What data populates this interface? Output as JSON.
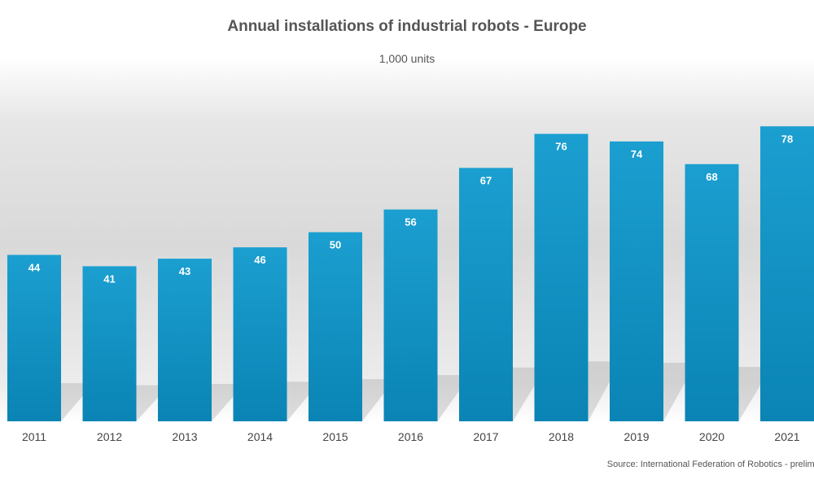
{
  "chart_data": {
    "type": "bar",
    "title": "Annual installations of industrial robots - Europe",
    "subtitle": "1,000 units",
    "categories": [
      "2011",
      "2012",
      "2013",
      "2014",
      "2015",
      "2016",
      "2017",
      "2018",
      "2019",
      "2020",
      "2021"
    ],
    "values": [
      44,
      41,
      43,
      46,
      50,
      56,
      67,
      76,
      74,
      68,
      78
    ],
    "xlabel": "",
    "ylabel": "",
    "ylim": [
      0,
      80
    ],
    "grid": false,
    "bar_color": "#1b9fd0",
    "bar_color_dark": "#0a84b4",
    "label_color": "#ffffff",
    "source": "Source: International Federation of Robotics - preliminary results"
  }
}
